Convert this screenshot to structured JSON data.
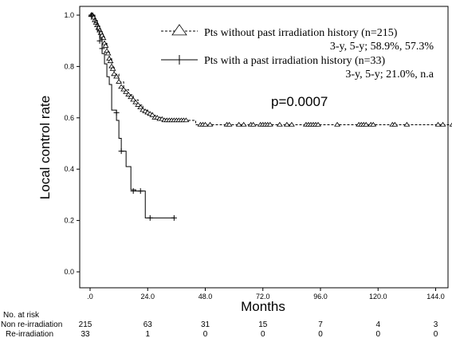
{
  "chart_data": {
    "type": "line",
    "ylabel": "Local control rate",
    "xlabel": "Months",
    "xlim": [
      0,
      150
    ],
    "ylim": [
      0,
      1.0
    ],
    "x_ticks": [
      0,
      24,
      48,
      72,
      96,
      120,
      144
    ],
    "x_tick_labels": [
      ".0",
      "24.0",
      "48.0",
      "72.0",
      "96.0",
      "120.0",
      "144.0"
    ],
    "y_ticks": [
      0,
      0.2,
      0.4,
      0.6,
      0.8,
      1.0
    ],
    "y_tick_labels": [
      "0.0",
      "0.2",
      "0.4",
      "0.6",
      "0.8",
      "1.0"
    ],
    "grid": false,
    "legend_position": "top-right",
    "p_value": "p=0.0007",
    "series": [
      {
        "name": "Pts without past irradiation history (n=215)",
        "stats": "3-y, 5-y; 58.9%,  57.3%",
        "line_style": "dashed",
        "censor_marker": "triangle",
        "steps": [
          [
            0,
            1.0
          ],
          [
            1,
            1.0
          ],
          [
            2,
            0.98
          ],
          [
            3,
            0.96
          ],
          [
            4,
            0.94
          ],
          [
            5,
            0.92
          ],
          [
            6,
            0.89
          ],
          [
            7,
            0.86
          ],
          [
            8,
            0.83
          ],
          [
            9,
            0.8
          ],
          [
            10,
            0.77
          ],
          [
            12,
            0.74
          ],
          [
            14,
            0.71
          ],
          [
            16,
            0.69
          ],
          [
            18,
            0.67
          ],
          [
            20,
            0.65
          ],
          [
            22,
            0.63
          ],
          [
            24,
            0.62
          ],
          [
            26,
            0.61
          ],
          [
            28,
            0.6
          ],
          [
            30,
            0.595
          ],
          [
            33,
            0.59
          ],
          [
            44,
            0.573
          ],
          [
            152,
            0.573
          ]
        ],
        "censored": [
          [
            0.5,
            1.0
          ],
          [
            1,
            1.0
          ],
          [
            1.5,
            0.99
          ],
          [
            2,
            0.98
          ],
          [
            2.5,
            0.97
          ],
          [
            3,
            0.96
          ],
          [
            3.5,
            0.95
          ],
          [
            4,
            0.94
          ],
          [
            4.5,
            0.93
          ],
          [
            5,
            0.92
          ],
          [
            5.5,
            0.91
          ],
          [
            6,
            0.89
          ],
          [
            6.5,
            0.88
          ],
          [
            7,
            0.86
          ],
          [
            7.5,
            0.85
          ],
          [
            8,
            0.83
          ],
          [
            8.5,
            0.82
          ],
          [
            9,
            0.8
          ],
          [
            9.5,
            0.79
          ],
          [
            10,
            0.77
          ],
          [
            11,
            0.76
          ],
          [
            12,
            0.74
          ],
          [
            13,
            0.72
          ],
          [
            14,
            0.71
          ],
          [
            15,
            0.7
          ],
          [
            16,
            0.69
          ],
          [
            17,
            0.68
          ],
          [
            18,
            0.67
          ],
          [
            19,
            0.66
          ],
          [
            20,
            0.65
          ],
          [
            21,
            0.64
          ],
          [
            22,
            0.63
          ],
          [
            23,
            0.625
          ],
          [
            24,
            0.62
          ],
          [
            25,
            0.615
          ],
          [
            26,
            0.61
          ],
          [
            27,
            0.6
          ],
          [
            28,
            0.6
          ],
          [
            29,
            0.595
          ],
          [
            30,
            0.595
          ],
          [
            31,
            0.59
          ],
          [
            32,
            0.59
          ],
          [
            33,
            0.59
          ],
          [
            34,
            0.59
          ],
          [
            35,
            0.59
          ],
          [
            36,
            0.59
          ],
          [
            37,
            0.59
          ],
          [
            38,
            0.59
          ],
          [
            39,
            0.59
          ],
          [
            40,
            0.59
          ],
          [
            46,
            0.573
          ],
          [
            47,
            0.573
          ],
          [
            48,
            0.573
          ],
          [
            50,
            0.573
          ],
          [
            57,
            0.573
          ],
          [
            58,
            0.573
          ],
          [
            62,
            0.573
          ],
          [
            64,
            0.573
          ],
          [
            67,
            0.573
          ],
          [
            68,
            0.573
          ],
          [
            71,
            0.573
          ],
          [
            72,
            0.573
          ],
          [
            73,
            0.573
          ],
          [
            74,
            0.573
          ],
          [
            75,
            0.573
          ],
          [
            79,
            0.573
          ],
          [
            82,
            0.573
          ],
          [
            84,
            0.573
          ],
          [
            90,
            0.573
          ],
          [
            91,
            0.573
          ],
          [
            92,
            0.573
          ],
          [
            93,
            0.573
          ],
          [
            94,
            0.573
          ],
          [
            95,
            0.573
          ],
          [
            103,
            0.573
          ],
          [
            112,
            0.573
          ],
          [
            113,
            0.573
          ],
          [
            114,
            0.573
          ],
          [
            115,
            0.573
          ],
          [
            117,
            0.573
          ],
          [
            118,
            0.573
          ],
          [
            126,
            0.573
          ],
          [
            127,
            0.573
          ],
          [
            132,
            0.573
          ],
          [
            145,
            0.573
          ],
          [
            147,
            0.573
          ],
          [
            151,
            0.573
          ]
        ]
      },
      {
        "name": "Pts with a past irradiation history (n=33)",
        "stats": "3-y, 5-y; 21.0%, n.a",
        "line_style": "solid",
        "censor_marker": "plus",
        "steps": [
          [
            0,
            1.0
          ],
          [
            1,
            1.0
          ],
          [
            2,
            0.97
          ],
          [
            3,
            0.94
          ],
          [
            4,
            0.91
          ],
          [
            5,
            0.85
          ],
          [
            6,
            0.81
          ],
          [
            7,
            0.76
          ],
          [
            8,
            0.73
          ],
          [
            9,
            0.63
          ],
          [
            11,
            0.59
          ],
          [
            12,
            0.52
          ],
          [
            13,
            0.47
          ],
          [
            15,
            0.41
          ],
          [
            17,
            0.32
          ],
          [
            19,
            0.315
          ],
          [
            23,
            0.21
          ],
          [
            35,
            0.21
          ]
        ],
        "censored": [
          [
            0.5,
            1.0
          ],
          [
            1,
            1.0
          ],
          [
            4,
            0.9
          ],
          [
            5,
            0.87
          ],
          [
            11,
            0.62
          ],
          [
            13,
            0.47
          ],
          [
            18,
            0.315
          ],
          [
            21,
            0.315
          ],
          [
            25,
            0.21
          ],
          [
            35,
            0.21
          ]
        ]
      }
    ],
    "risk_table": {
      "header": "No. at risk",
      "rows": [
        {
          "label": "Non re-irradiation",
          "values": [
            "215",
            "63",
            "31",
            "15",
            "7",
            "4",
            "3"
          ]
        },
        {
          "label": "Re-irradiation",
          "values": [
            "33",
            "1",
            "0",
            "0",
            "0",
            "0",
            "0"
          ]
        }
      ]
    }
  }
}
